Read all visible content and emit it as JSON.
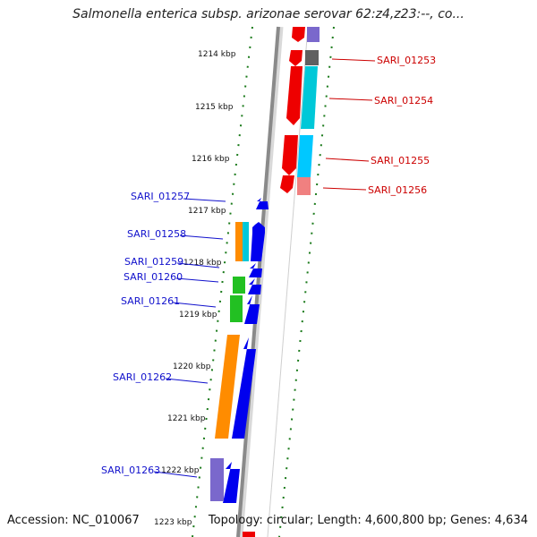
{
  "title": "Salmonella enterica subsp. arizonae serovar 62:z4,z23:--, co...",
  "footer": {
    "accession": "Accession: NC_010067",
    "topology": "Topology: circular; Length: 4,600,800 bp; Genes: 4,634"
  },
  "scale_labels": [
    "1214 kbp",
    "1215 kbp",
    "1216 kbp",
    "1217 kbp",
    "1218 kbp",
    "1219 kbp",
    "1220 kbp",
    "1221 kbp",
    "1222 kbp",
    "1223 kbp"
  ],
  "gene_labels_left": [
    "SARI_01257",
    "SARI_01258",
    "SARI_01259",
    "SARI_01260",
    "SARI_01261",
    "SARI_01262",
    "SARI_01263"
  ],
  "gene_labels_right": [
    "SARI_01253",
    "SARI_01254",
    "SARI_01255",
    "SARI_01256"
  ],
  "colors": {
    "forward_strand": "#0000ee",
    "reverse_strand": "#ee0000",
    "backbone": "#8a8a8a",
    "tick_marks": "#1a7a1a",
    "label_left": "#1010cc",
    "label_right": "#cc0000"
  }
}
